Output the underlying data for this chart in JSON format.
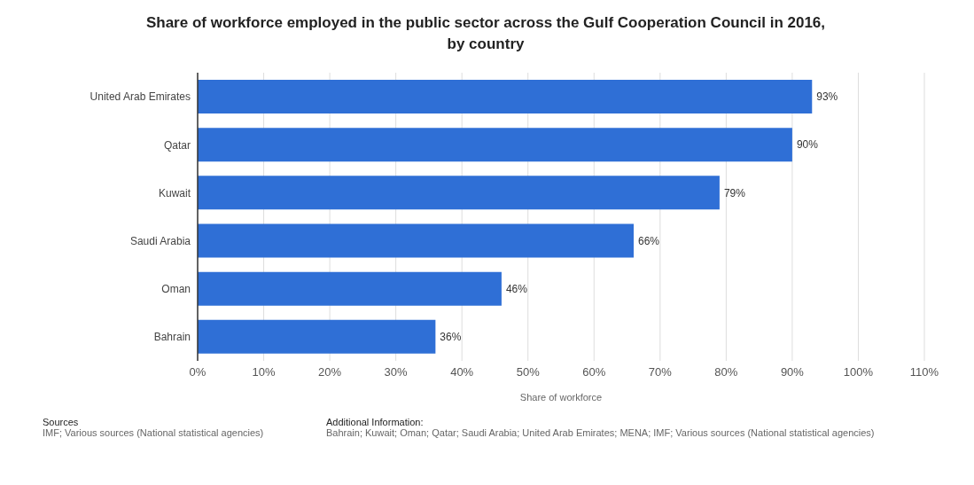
{
  "chart_data": {
    "type": "bar",
    "orientation": "horizontal",
    "title": "Share of workforce employed in the public sector across the Gulf Cooperation Council in 2016, by country",
    "xlabel": "Share of workforce",
    "categories": [
      "United Arab Emirates",
      "Qatar",
      "Kuwait",
      "Saudi Arabia",
      "Oman",
      "Bahrain"
    ],
    "values": [
      93,
      90,
      79,
      66,
      46,
      36
    ],
    "value_labels": [
      "93%",
      "90%",
      "79%",
      "66%",
      "46%",
      "36%"
    ],
    "color": "#2f6fd6",
    "xlim": [
      0,
      110
    ],
    "xticks": [
      {
        "value": 0,
        "label": "0%"
      },
      {
        "value": 10,
        "label": "10%"
      },
      {
        "value": 20,
        "label": "20%"
      },
      {
        "value": 30,
        "label": "30%"
      },
      {
        "value": 40,
        "label": "40%"
      },
      {
        "value": 50,
        "label": "50%"
      },
      {
        "value": 60,
        "label": "60%"
      },
      {
        "value": 70,
        "label": "70%"
      },
      {
        "value": 80,
        "label": "80%"
      },
      {
        "value": 90,
        "label": "90%"
      },
      {
        "value": 100,
        "label": "100%"
      },
      {
        "value": 110,
        "label": "110%"
      }
    ],
    "grid": "x",
    "legend": false,
    "annotations": [
      "Sources",
      "IMF; Various sources (National statistical agencies)",
      "Additional Information:",
      "Bahrain; Kuwait; Oman; Qatar; Saudi Arabia; United Arab Emirates; MENA; IMF; Various sources (National statistical agencies)"
    ]
  }
}
